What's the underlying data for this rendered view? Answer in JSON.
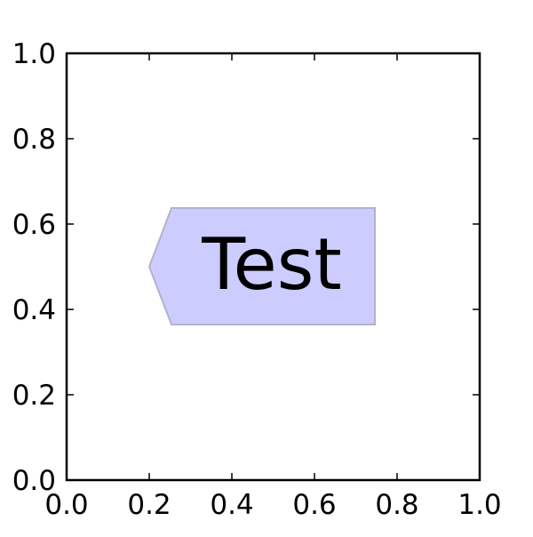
{
  "chart_data": {
    "type": "scatter",
    "title": "",
    "xlabel": "",
    "ylabel": "",
    "xlim": [
      0.0,
      1.0
    ],
    "ylim": [
      0.0,
      1.0
    ],
    "x_ticks": [
      "0.0",
      "0.2",
      "0.4",
      "0.6",
      "0.8",
      "1.0"
    ],
    "y_ticks": [
      "0.0",
      "0.2",
      "0.4",
      "0.6",
      "0.8",
      "1.0"
    ],
    "x_tick_values": [
      0.0,
      0.2,
      0.4,
      0.6,
      0.8,
      1.0
    ],
    "y_tick_values": [
      0.0,
      0.2,
      0.4,
      0.6,
      0.8,
      1.0
    ],
    "grid": false,
    "series": [],
    "annotations": [
      {
        "text": "Test",
        "x": 0.5,
        "y": 0.5,
        "box_style": "larrow",
        "box_facecolor": "#ccccff",
        "box_edgecolor": "#b3b3cc"
      }
    ]
  }
}
